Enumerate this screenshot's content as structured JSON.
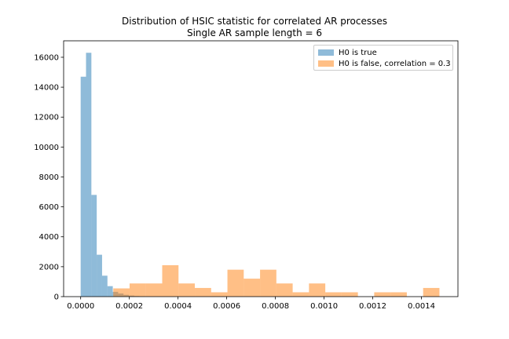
{
  "chart_data": {
    "type": "histogram",
    "title": "Distribution of HSIC statistic for correlated AR processes",
    "subtitle": "Single AR sample length = 6",
    "xlabel": "",
    "ylabel": "",
    "xlim": [
      -7e-05,
      0.00155
    ],
    "ylim": [
      0,
      17100
    ],
    "x_ticks": [
      0.0,
      0.0002,
      0.0004,
      0.0006,
      0.0008,
      0.001,
      0.0012,
      0.0014
    ],
    "x_tick_labels": [
      "0.0000",
      "0.0002",
      "0.0004",
      "0.0006",
      "0.0008",
      "0.0010",
      "0.0012",
      "0.0014"
    ],
    "y_ticks": [
      0,
      2000,
      4000,
      6000,
      8000,
      10000,
      12000,
      14000,
      16000
    ],
    "y_tick_labels": [
      "0",
      "2000",
      "4000",
      "6000",
      "8000",
      "10000",
      "12000",
      "14000",
      "16000"
    ],
    "legend_position": "top-right",
    "grid": false,
    "series": [
      {
        "name": "H0 is true",
        "color": "#1f77b4",
        "opacity": 0.5,
        "bins": [
          {
            "x0": 0.0,
            "x1": 2.2e-05,
            "count": 14700
          },
          {
            "x0": 2.2e-05,
            "x1": 4.4e-05,
            "count": 16300
          },
          {
            "x0": 4.4e-05,
            "x1": 6.6e-05,
            "count": 6800
          },
          {
            "x0": 6.6e-05,
            "x1": 8.8e-05,
            "count": 2800
          },
          {
            "x0": 8.8e-05,
            "x1": 0.00011,
            "count": 1400
          },
          {
            "x0": 0.00011,
            "x1": 0.000132,
            "count": 700
          },
          {
            "x0": 0.000132,
            "x1": 0.000154,
            "count": 320
          },
          {
            "x0": 0.000154,
            "x1": 0.000176,
            "count": 210
          },
          {
            "x0": 0.000176,
            "x1": 0.000198,
            "count": 120
          },
          {
            "x0": 0.000198,
            "x1": 0.00022,
            "count": 70
          },
          {
            "x0": 0.00022,
            "x1": 0.000242,
            "count": 40
          },
          {
            "x0": 0.000242,
            "x1": 0.000264,
            "count": 25
          },
          {
            "x0": 0.000264,
            "x1": 0.000286,
            "count": 15
          }
        ]
      },
      {
        "name": "H0 is false, correlation = 0.3",
        "color": "#ff7f0e",
        "opacity": 0.5,
        "bins": [
          {
            "x0": 0.000134,
            "x1": 0.000201,
            "count": 550
          },
          {
            "x0": 0.000201,
            "x1": 0.000268,
            "count": 880
          },
          {
            "x0": 0.000268,
            "x1": 0.000335,
            "count": 880
          },
          {
            "x0": 0.000335,
            "x1": 0.000402,
            "count": 2100
          },
          {
            "x0": 0.000402,
            "x1": 0.000469,
            "count": 880
          },
          {
            "x0": 0.000469,
            "x1": 0.000536,
            "count": 580
          },
          {
            "x0": 0.000536,
            "x1": 0.000603,
            "count": 290
          },
          {
            "x0": 0.000603,
            "x1": 0.00067,
            "count": 1800
          },
          {
            "x0": 0.00067,
            "x1": 0.000737,
            "count": 1200
          },
          {
            "x0": 0.000737,
            "x1": 0.000804,
            "count": 1800
          },
          {
            "x0": 0.000804,
            "x1": 0.000871,
            "count": 880
          },
          {
            "x0": 0.000871,
            "x1": 0.000938,
            "count": 290
          },
          {
            "x0": 0.000938,
            "x1": 0.001005,
            "count": 880
          },
          {
            "x0": 0.001005,
            "x1": 0.001072,
            "count": 290
          },
          {
            "x0": 0.001072,
            "x1": 0.001139,
            "count": 290
          },
          {
            "x0": 0.001139,
            "x1": 0.001206,
            "count": 0
          },
          {
            "x0": 0.001206,
            "x1": 0.001273,
            "count": 290
          },
          {
            "x0": 0.001273,
            "x1": 0.00134,
            "count": 290
          },
          {
            "x0": 0.00134,
            "x1": 0.001407,
            "count": 0
          },
          {
            "x0": 0.001407,
            "x1": 0.001474,
            "count": 580
          }
        ]
      }
    ]
  }
}
